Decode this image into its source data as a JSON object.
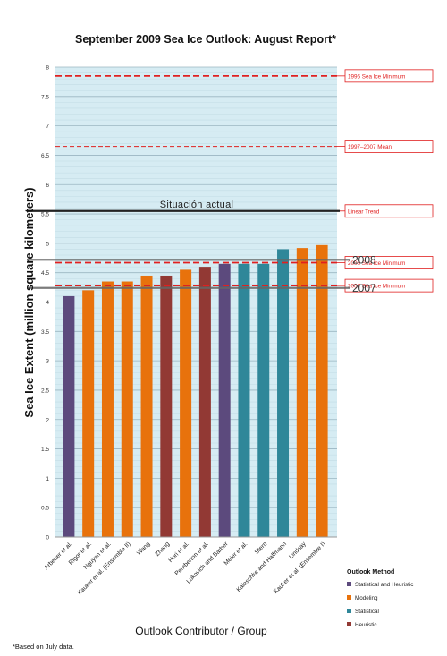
{
  "chart_data": {
    "type": "bar",
    "title": "September 2009 Sea Ice Outlook: August Report*",
    "xlabel": "Outlook Contributor / Group",
    "ylabel": "Sea Ice Extent (million square kilometers)",
    "ylim": [
      0,
      8
    ],
    "y_ticks": [
      "0",
      "0.5",
      "1",
      "1.5",
      "2",
      "2.5",
      "3",
      "3.5",
      "4",
      "4.5",
      "5",
      "5.5",
      "6",
      "6.5",
      "7",
      "7.5",
      "8"
    ],
    "grid": true,
    "plot_background": "#d6ecf3",
    "categories": [
      "Arbetter et al.",
      "Rigor et al.",
      "Nguyen et al.",
      "Kauker et al. (Ensemble II)",
      "Wang",
      "Zhang",
      "Hori et al.",
      "Pemberton et al.",
      "Lukovich and Barber",
      "Meier et al.",
      "Stern",
      "Kaleschke and Halfmann",
      "Lindsay",
      "Kauker et al. (Ensemble I)"
    ],
    "values": [
      4.1,
      4.2,
      4.35,
      4.35,
      4.45,
      4.45,
      4.55,
      4.6,
      4.65,
      4.65,
      4.65,
      4.9,
      4.92,
      4.97
    ],
    "methods": [
      "Statistical and Heuristic",
      "Modeling",
      "Modeling",
      "Modeling",
      "Modeling",
      "Heuristic",
      "Modeling",
      "Heuristic",
      "Statistical and Heuristic",
      "Statistical",
      "Statistical",
      "Statistical",
      "Modeling",
      "Modeling"
    ],
    "method_colors": {
      "Statistical and Heuristic": "#5c4a7d",
      "Modeling": "#e8720c",
      "Statistical": "#2f8799",
      "Heuristic": "#923934"
    },
    "reference_lines": [
      {
        "label": "1996 Sea Ice Minimum",
        "value": 7.85,
        "style": "thick-dashed",
        "color": "#e02020"
      },
      {
        "label": "1997–2007 Mean",
        "value": 6.65,
        "style": "thin-dashed",
        "color": "#e02020"
      },
      {
        "label": "Linear Trend",
        "value": 5.55,
        "style": "thin-dashed",
        "color": "#e02020"
      },
      {
        "label": "2008 Sea Ice Minimum",
        "value": 4.67,
        "style": "thick-dashed",
        "color": "#e02020"
      },
      {
        "label": "2007 Sea Ice Minimum",
        "value": 4.28,
        "style": "thick-dashed",
        "color": "#e02020"
      }
    ],
    "overlay_lines": [
      {
        "label": "Situación actual",
        "value": 5.55,
        "color": "#222222"
      },
      {
        "label": "2008",
        "value": 4.72,
        "color": "#666666"
      },
      {
        "label": "2007",
        "value": 4.24,
        "color": "#666666"
      }
    ],
    "legend": {
      "title": "Outlook Method",
      "placement": "bottom-right",
      "entries": [
        "Statistical and Heuristic",
        "Modeling",
        "Statistical",
        "Heuristic"
      ]
    },
    "footnote": "*Based on July data."
  }
}
